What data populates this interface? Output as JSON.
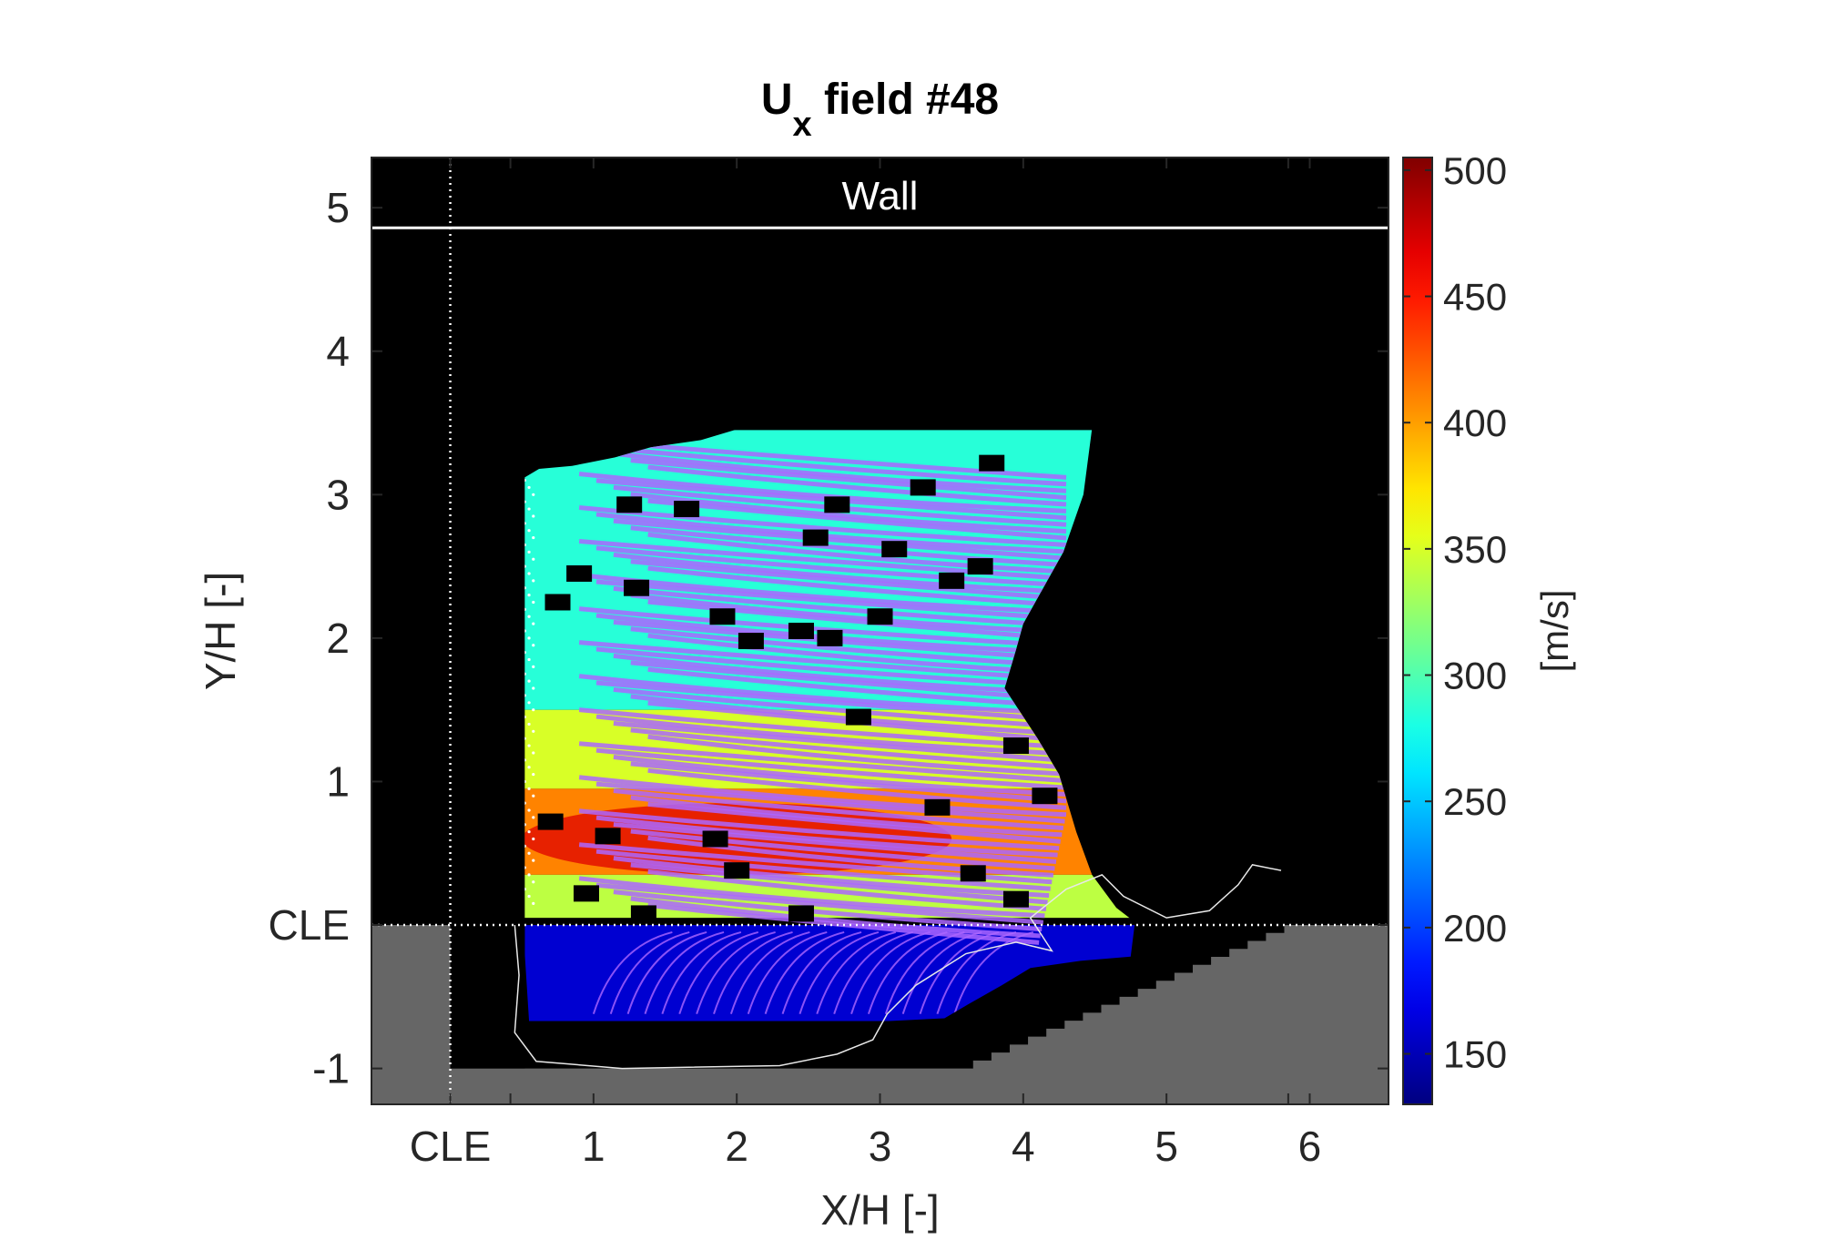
{
  "figure": {
    "title_main": "U",
    "title_sub": "x",
    "title_rest": " field #48"
  },
  "chart_data": {
    "type": "heatmap",
    "title": "Ux field #48",
    "xlabel": "X/H [-]",
    "ylabel": "Y/H [-]",
    "xlim": [
      -0.55,
      6.55
    ],
    "ylim": [
      -1.25,
      5.35
    ],
    "x_ticks": [
      {
        "value": 0,
        "label": "CLE"
      },
      {
        "value": 1,
        "label": "1"
      },
      {
        "value": 2,
        "label": "2"
      },
      {
        "value": 3,
        "label": "3"
      },
      {
        "value": 4,
        "label": "4"
      },
      {
        "value": 5,
        "label": "5"
      },
      {
        "value": 6,
        "label": "6"
      }
    ],
    "x_minor_ticks": [
      0.42,
      5.85
    ],
    "y_ticks": [
      {
        "value": -1,
        "label": "-1"
      },
      {
        "value": 0,
        "label": "CLE"
      },
      {
        "value": 1,
        "label": "1"
      },
      {
        "value": 2,
        "label": "2"
      },
      {
        "value": 3,
        "label": "3"
      },
      {
        "value": 4,
        "label": "4"
      },
      {
        "value": 5,
        "label": "5"
      }
    ],
    "grid": false,
    "background_color": "#000000",
    "solid_region_color": "#666666",
    "wall": {
      "label": "Wall",
      "y": 4.86,
      "color": "#ffffff"
    },
    "reference_lines": {
      "cle_x": 0,
      "cle_y": 0,
      "style": "dotted",
      "color": "#ffffff"
    },
    "step_floor": {
      "y": -1.0,
      "ramp_start_x": 3.65,
      "ramp_end_x": 5.95,
      "ramp_end_y": 0.0
    },
    "colorbar": {
      "label": "[m/s]",
      "min": 130,
      "max": 505,
      "ticks": [
        150,
        200,
        250,
        300,
        350,
        400,
        450,
        500
      ],
      "colormap": "jet"
    },
    "field_region": {
      "outline": [
        [
          0.52,
          3.12
        ],
        [
          0.62,
          3.18
        ],
        [
          0.85,
          3.2
        ],
        [
          1.15,
          3.26
        ],
        [
          1.4,
          3.33
        ],
        [
          1.75,
          3.38
        ],
        [
          2.05,
          3.47
        ],
        [
          2.5,
          3.47
        ],
        [
          2.85,
          3.46
        ],
        [
          3.6,
          3.46
        ],
        [
          4.48,
          3.46
        ],
        [
          4.42,
          3.0
        ],
        [
          4.28,
          2.6
        ],
        [
          4.0,
          2.1
        ],
        [
          3.95,
          1.92
        ],
        [
          3.87,
          1.65
        ],
        [
          4.1,
          1.3
        ],
        [
          4.25,
          1.05
        ],
        [
          4.37,
          0.65
        ],
        [
          4.48,
          0.35
        ],
        [
          4.65,
          0.12
        ],
        [
          4.78,
          0.02
        ],
        [
          4.75,
          -0.22
        ],
        [
          4.4,
          -0.25
        ],
        [
          4.05,
          -0.3
        ],
        [
          3.85,
          -0.42
        ],
        [
          3.62,
          -0.55
        ],
        [
          3.45,
          -0.65
        ],
        [
          3.05,
          -0.67
        ],
        [
          2.4,
          -0.67
        ],
        [
          1.5,
          -0.67
        ],
        [
          0.55,
          -0.67
        ],
        [
          0.52,
          -0.2
        ]
      ],
      "color_bands": [
        {
          "y_from": 1.5,
          "y_to": 3.45,
          "value": 285
        },
        {
          "y_from": 0.95,
          "y_to": 1.5,
          "value": 350
        },
        {
          "y_from": 0.35,
          "y_to": 0.95,
          "value": 410
        },
        {
          "y_from": 0.05,
          "y_to": 0.35,
          "value": 340
        },
        {
          "y_from": -0.67,
          "y_to": 0.0,
          "value": 160
        }
      ],
      "peak_velocity": 470,
      "streamline_color": "#ac66ff"
    },
    "dropouts": [
      [
        1.25,
        2.93
      ],
      [
        1.65,
        2.9
      ],
      [
        3.5,
        2.4
      ],
      [
        2.7,
        2.93
      ],
      [
        3.1,
        2.62
      ],
      [
        0.9,
        2.45
      ],
      [
        1.3,
        2.35
      ],
      [
        0.75,
        2.25
      ],
      [
        1.9,
        2.15
      ],
      [
        2.1,
        1.98
      ],
      [
        2.45,
        2.05
      ],
      [
        2.65,
        2.0
      ],
      [
        3.0,
        2.15
      ],
      [
        2.85,
        1.45
      ],
      [
        3.95,
        1.25
      ],
      [
        3.7,
        2.5
      ],
      [
        4.15,
        0.9
      ],
      [
        3.4,
        0.82
      ],
      [
        1.85,
        0.6
      ],
      [
        1.1,
        0.62
      ],
      [
        0.7,
        0.72
      ],
      [
        2.0,
        0.38
      ],
      [
        3.95,
        0.18
      ],
      [
        3.65,
        0.36
      ],
      [
        0.95,
        0.22
      ],
      [
        1.35,
        0.08
      ],
      [
        2.45,
        0.08
      ],
      [
        3.78,
        3.22
      ],
      [
        3.3,
        3.05
      ],
      [
        2.55,
        2.7
      ]
    ],
    "shock_contour": [
      [
        0.45,
        0.0
      ],
      [
        0.48,
        -0.35
      ],
      [
        0.45,
        -0.75
      ],
      [
        0.6,
        -0.95
      ],
      [
        1.2,
        -1.0
      ],
      [
        2.3,
        -0.98
      ],
      [
        2.7,
        -0.9
      ],
      [
        2.95,
        -0.8
      ],
      [
        3.05,
        -0.62
      ],
      [
        3.25,
        -0.42
      ],
      [
        3.6,
        -0.2
      ],
      [
        3.95,
        -0.12
      ],
      [
        4.2,
        -0.18
      ],
      [
        4.05,
        0.05
      ],
      [
        4.3,
        0.25
      ],
      [
        4.55,
        0.35
      ],
      [
        4.7,
        0.2
      ],
      [
        5.0,
        0.05
      ],
      [
        5.3,
        0.1
      ],
      [
        5.5,
        0.28
      ],
      [
        5.6,
        0.42
      ],
      [
        5.8,
        0.38
      ]
    ]
  }
}
